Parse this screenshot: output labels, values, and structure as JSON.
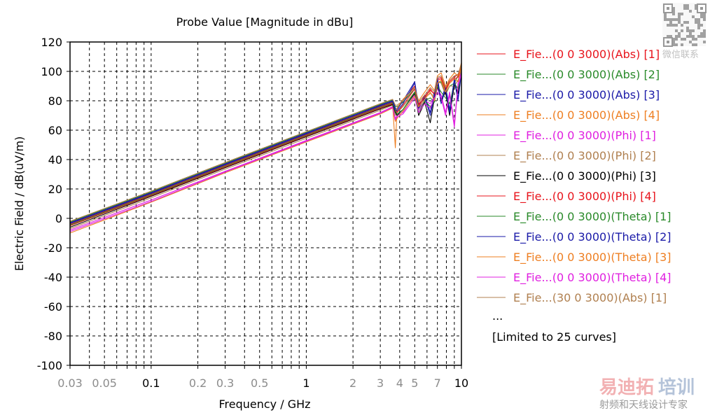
{
  "chart_data": {
    "type": "line",
    "title": "Probe Value [Magnitude in dBu]",
    "xlabel": "Frequency / GHz",
    "ylabel": "Electric Field / dB(uV/m)",
    "xscale": "log",
    "xlim": [
      0.03,
      10
    ],
    "ylim": [
      -100,
      120
    ],
    "grid": true,
    "legend_position": "right",
    "yticks": [
      "120",
      "100",
      "80",
      "60",
      "40",
      "20",
      "0",
      "-20",
      "-40",
      "-60",
      "-80",
      "-100"
    ],
    "yticks_values": [
      120,
      100,
      80,
      60,
      40,
      20,
      0,
      -20,
      -40,
      -60,
      -80,
      -100
    ],
    "xticks": [
      {
        "value": 0.03,
        "label": "0.03",
        "major": false
      },
      {
        "value": 0.05,
        "label": "0.05",
        "major": false
      },
      {
        "value": 0.1,
        "label": "0.1",
        "major": true
      },
      {
        "value": 0.2,
        "label": "0.2",
        "major": false
      },
      {
        "value": 0.3,
        "label": "0.3",
        "major": false
      },
      {
        "value": 0.5,
        "label": "0.5",
        "major": false
      },
      {
        "value": 1,
        "label": "1",
        "major": true
      },
      {
        "value": 2,
        "label": "2",
        "major": false
      },
      {
        "value": 3,
        "label": "3",
        "major": false
      },
      {
        "value": 4,
        "label": "4",
        "major": false
      },
      {
        "value": 5,
        "label": "5",
        "major": false
      },
      {
        "value": 7,
        "label": "7",
        "major": false
      },
      {
        "value": 10,
        "label": "10",
        "major": true
      }
    ],
    "x": [
      0.03,
      0.1,
      0.3,
      1,
      2,
      3,
      3.6,
      3.75,
      3.85,
      4.2,
      5,
      5.3,
      5.8,
      6.3,
      6.7,
      7.0,
      7.4,
      7.9,
      8.4,
      9.0,
      9.5,
      10
    ],
    "series": [
      {
        "name": "E_Fie...(0 0 3000)(Abs) [1]",
        "color": "#e8141c",
        "values": [
          -4,
          16.5,
          36,
          57,
          69,
          76,
          79,
          73,
          74,
          80,
          90,
          78,
          82,
          88,
          84,
          95,
          96,
          88,
          93,
          96,
          98,
          104
        ]
      },
      {
        "name": "E_Fie...(0 0 3000)(Abs) [2]",
        "color": "#2a8a2a",
        "values": [
          -2.5,
          18,
          37.5,
          58.5,
          70.5,
          77.5,
          80.5,
          76,
          76,
          79,
          88,
          74,
          80,
          82,
          79,
          92,
          93,
          85,
          90,
          92,
          97,
          102
        ]
      },
      {
        "name": "E_Fie...(0 0 3000)(Abs) [3]",
        "color": "#1a1aa8",
        "values": [
          -3,
          17.5,
          37,
          58,
          70,
          77,
          80,
          75,
          74,
          80,
          93,
          76,
          84,
          72,
          86,
          96,
          80,
          90,
          74,
          95,
          82,
          100
        ]
      },
      {
        "name": "E_Fie...(0 0 3000)(Abs) [4]",
        "color": "#ee7f22",
        "values": [
          -5,
          15.5,
          35,
          56,
          68,
          75,
          78,
          48,
          75,
          81,
          89,
          80,
          86,
          91,
          87,
          97,
          99,
          90,
          95,
          99,
          97,
          106
        ]
      },
      {
        "name": "E_Fie...(0 0 3000)(Phi) [1]",
        "color": "#e020e0",
        "values": [
          -8,
          12.5,
          32,
          53,
          65,
          72,
          76,
          68,
          70,
          72,
          84,
          74,
          80,
          78,
          83,
          88,
          84,
          72,
          86,
          64,
          92,
          100
        ]
      },
      {
        "name": "E_Fie...(0 0 3000)(Phi) [2]",
        "color": "#b08050",
        "values": [
          -7,
          14,
          33.5,
          54.5,
          66.5,
          73.5,
          77,
          70,
          72,
          76,
          86,
          75,
          82,
          85,
          83,
          93,
          92,
          84,
          90,
          90,
          94,
          101
        ]
      },
      {
        "name": "E_Fie...(0 0 3000)(Phi) [3]",
        "color": "#000000",
        "values": [
          -6,
          15,
          34.5,
          55.5,
          67.5,
          74.5,
          77.5,
          72,
          70,
          74,
          85,
          70,
          79,
          65,
          82,
          91,
          80,
          86,
          70,
          91,
          85,
          98
        ]
      },
      {
        "name": "E_Fie...(0 0 3000)(Phi) [4]",
        "color": "#e8141c",
        "values": [
          -5,
          15.5,
          35,
          56,
          68,
          75,
          78,
          74,
          72,
          77,
          88,
          77,
          83,
          87,
          85,
          94,
          95,
          87,
          92,
          95,
          96,
          103
        ]
      },
      {
        "name": "E_Fie...(0 0 3000)(Theta) [1]",
        "color": "#2a8a2a",
        "values": [
          -4.5,
          16,
          35.5,
          56.5,
          68.5,
          75.5,
          78.5,
          73,
          71,
          74,
          86,
          72,
          80,
          76,
          80,
          90,
          86,
          82,
          78,
          92,
          88,
          97
        ]
      },
      {
        "name": "E_Fie...(0 0 3000)(Theta) [2]",
        "color": "#1a1aa8",
        "values": [
          -3.5,
          17,
          36.5,
          57.5,
          69.5,
          76.5,
          79.5,
          74,
          73,
          78,
          92,
          75,
          82,
          70,
          84,
          94,
          78,
          88,
          72,
          94,
          80,
          99
        ]
      },
      {
        "name": "E_Fie...(0 0 3000)(Theta) [3]",
        "color": "#ee7f22",
        "values": [
          -10,
          11,
          31,
          52,
          64,
          71,
          75,
          66,
          68,
          73,
          83,
          76,
          81,
          86,
          80,
          92,
          94,
          86,
          92,
          95,
          93,
          104
        ]
      },
      {
        "name": "E_Fie...(0 0 3000)(Theta) [4]",
        "color": "#e020e0",
        "values": [
          -9,
          11.5,
          31.5,
          52.5,
          64.5,
          71.5,
          75.5,
          67,
          69,
          71,
          82,
          72,
          78,
          75,
          82,
          86,
          82,
          70,
          84,
          62,
          90,
          98
        ]
      },
      {
        "name": "E_Fie...(30 0 3000)(Abs) [1]",
        "color": "#b08050",
        "values": [
          -2,
          18.5,
          38,
          59,
          71,
          78,
          81,
          77,
          77,
          80,
          89,
          79,
          84,
          89,
          86,
          96,
          97,
          89,
          94,
          97,
          98,
          105
        ]
      }
    ],
    "legend_extra": [
      "...",
      "[Limited to 25 curves]"
    ]
  },
  "watermark": {
    "qr_caption": "微信联系",
    "brand_part1": "易迪拓",
    "brand_part2": "培训",
    "subtitle": "射频和天线设计专家"
  }
}
